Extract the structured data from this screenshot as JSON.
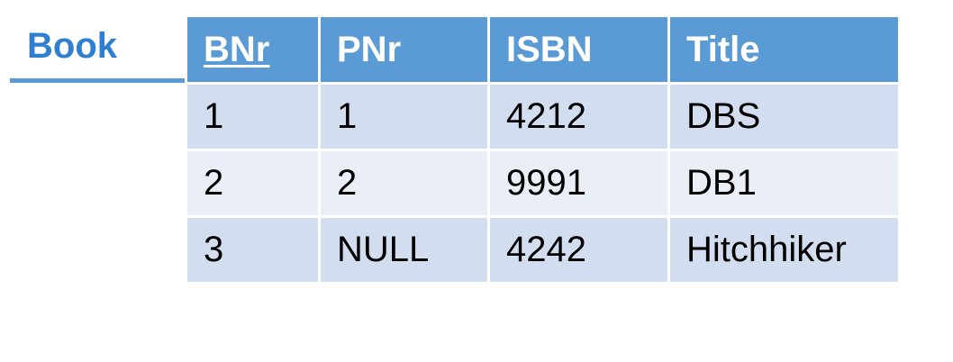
{
  "relation": {
    "name": "Book",
    "primary_key": "BNr",
    "columns": [
      "BNr",
      "PNr",
      "ISBN",
      "Title"
    ],
    "rows": [
      [
        "1",
        "1",
        "4212",
        "DBS"
      ],
      [
        "2",
        "2",
        "9991",
        "DB1"
      ],
      [
        "3",
        "NULL",
        "4242",
        "Hitchhiker"
      ]
    ]
  },
  "colors": {
    "label_text": "#2e7fd2",
    "header_background": "#5b9bd5",
    "header_text": "#ffffff",
    "row_band_dark": "#d2deef",
    "row_band_light": "#e9eef7"
  }
}
